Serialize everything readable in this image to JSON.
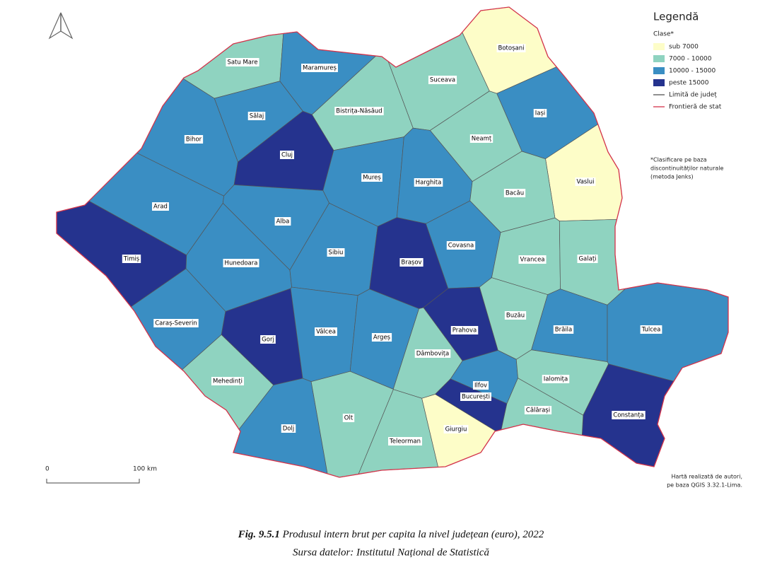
{
  "legend": {
    "title": "Legendă",
    "subtitle": "Clase*",
    "classes": [
      {
        "label": "sub 7000",
        "color": "#fdfdc8"
      },
      {
        "label": "7000 - 10000",
        "color": "#8fd3c0"
      },
      {
        "label": "10000 - 15000",
        "color": "#3a8ec3"
      },
      {
        "label": "peste 15000",
        "color": "#25338e"
      }
    ],
    "lines": [
      {
        "label": "Limită de județ",
        "color": "#555555"
      },
      {
        "label": "Frontieră de stat",
        "color": "#d4334a"
      }
    ]
  },
  "note": [
    "*Clasificare pe baza",
    "discontinuităților naturale",
    "(metoda Jenks)"
  ],
  "scale_bar": {
    "start": "0",
    "end": "100 km"
  },
  "credit": [
    "Hartă realizată de autori,",
    "pe baza QGIS 3.32.1-Lima."
  ],
  "caption": {
    "figure": "Fig. 9.5.1",
    "title": "Produsul intern brut per capita la nivel județean (euro), 2022",
    "source": "Sursa datelor: Institutul Național de Statistică"
  },
  "counties": [
    {
      "name": "Satu Mare",
      "color": "#8fd3c0"
    },
    {
      "name": "Maramureș",
      "color": "#3a8ec3"
    },
    {
      "name": "Botoșani",
      "color": "#fdfdc8"
    },
    {
      "name": "Suceava",
      "color": "#8fd3c0"
    },
    {
      "name": "Sălaj",
      "color": "#3a8ec3"
    },
    {
      "name": "Bistrița-Năsăud",
      "color": "#8fd3c0"
    },
    {
      "name": "Iași",
      "color": "#3a8ec3"
    },
    {
      "name": "Bihor",
      "color": "#3a8ec3"
    },
    {
      "name": "Cluj",
      "color": "#25338e"
    },
    {
      "name": "Neamț",
      "color": "#8fd3c0"
    },
    {
      "name": "Vaslui",
      "color": "#fdfdc8"
    },
    {
      "name": "Mureș",
      "color": "#3a8ec3"
    },
    {
      "name": "Harghita",
      "color": "#3a8ec3"
    },
    {
      "name": "Arad",
      "color": "#3a8ec3"
    },
    {
      "name": "Bacău",
      "color": "#8fd3c0"
    },
    {
      "name": "Alba",
      "color": "#3a8ec3"
    },
    {
      "name": "Timiș",
      "color": "#25338e"
    },
    {
      "name": "Hunedoara",
      "color": "#3a8ec3"
    },
    {
      "name": "Sibiu",
      "color": "#3a8ec3"
    },
    {
      "name": "Brașov",
      "color": "#25338e"
    },
    {
      "name": "Covasna",
      "color": "#3a8ec3"
    },
    {
      "name": "Vrancea",
      "color": "#8fd3c0"
    },
    {
      "name": "Galați",
      "color": "#8fd3c0"
    },
    {
      "name": "Caraș-Severin",
      "color": "#3a8ec3"
    },
    {
      "name": "Gorj",
      "color": "#25338e"
    },
    {
      "name": "Vâlcea",
      "color": "#3a8ec3"
    },
    {
      "name": "Argeș",
      "color": "#3a8ec3"
    },
    {
      "name": "Prahova",
      "color": "#25338e"
    },
    {
      "name": "Buzău",
      "color": "#8fd3c0"
    },
    {
      "name": "Brăila",
      "color": "#3a8ec3"
    },
    {
      "name": "Tulcea",
      "color": "#3a8ec3"
    },
    {
      "name": "Dâmbovița",
      "color": "#8fd3c0"
    },
    {
      "name": "Mehedinți",
      "color": "#8fd3c0"
    },
    {
      "name": "Ilfov",
      "color": "#3a8ec3"
    },
    {
      "name": "București",
      "color": "#25338e"
    },
    {
      "name": "Ialomița",
      "color": "#8fd3c0"
    },
    {
      "name": "Constanța",
      "color": "#25338e"
    },
    {
      "name": "Dolj",
      "color": "#3a8ec3"
    },
    {
      "name": "Olt",
      "color": "#8fd3c0"
    },
    {
      "name": "Teleorman",
      "color": "#8fd3c0"
    },
    {
      "name": "Giurgiu",
      "color": "#fdfdc8"
    },
    {
      "name": "Călărași",
      "color": "#8fd3c0"
    }
  ]
}
